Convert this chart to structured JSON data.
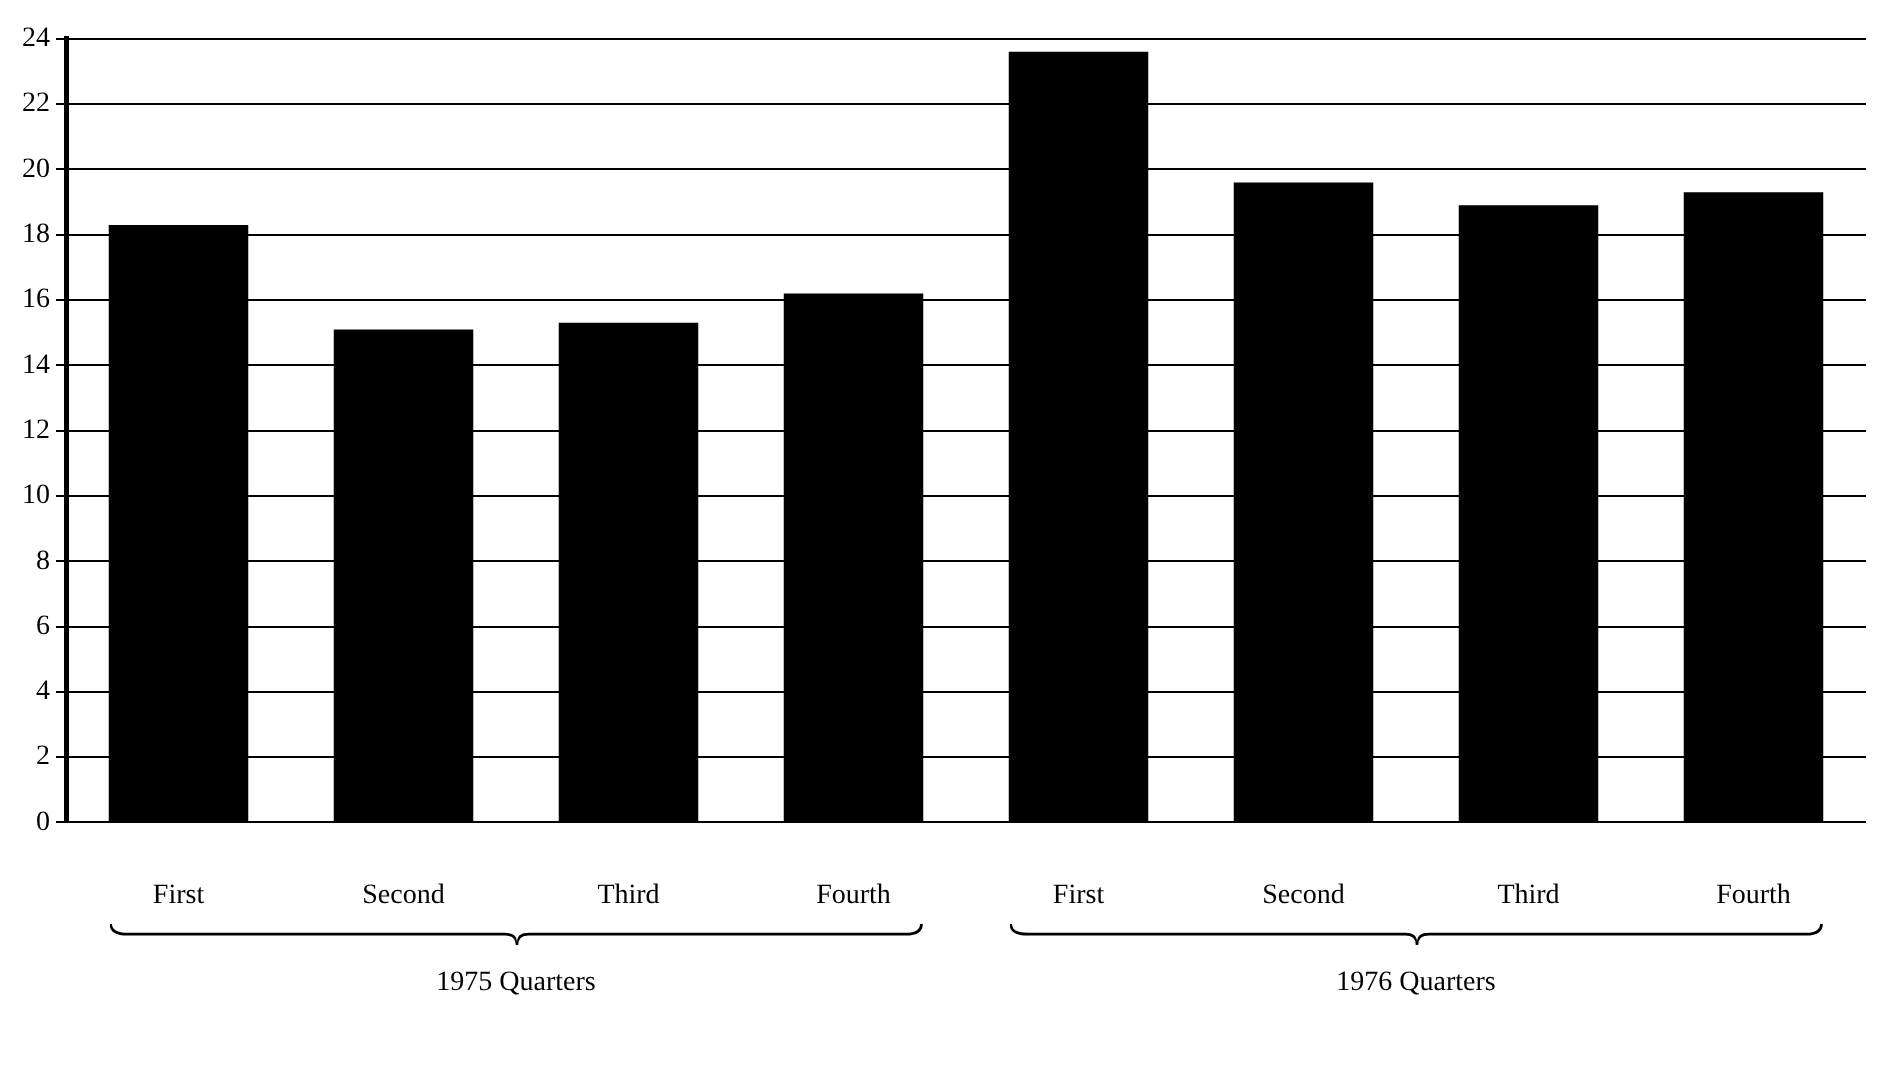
{
  "chart_data": {
    "type": "bar",
    "categories": [
      "First",
      "Second",
      "Third",
      "Fourth",
      "First",
      "Second",
      "Third",
      "Fourth"
    ],
    "values": [
      18.3,
      15.1,
      15.3,
      16.2,
      23.6,
      19.6,
      18.9,
      19.3
    ],
    "color": "#000000",
    "ylim": [
      0,
      24
    ],
    "yticks": [
      0,
      2,
      4,
      6,
      8,
      10,
      12,
      14,
      16,
      18,
      20,
      22,
      24
    ],
    "grid": "y",
    "annotations": [
      "1975 Quarters",
      "1976 Quarters"
    ]
  }
}
